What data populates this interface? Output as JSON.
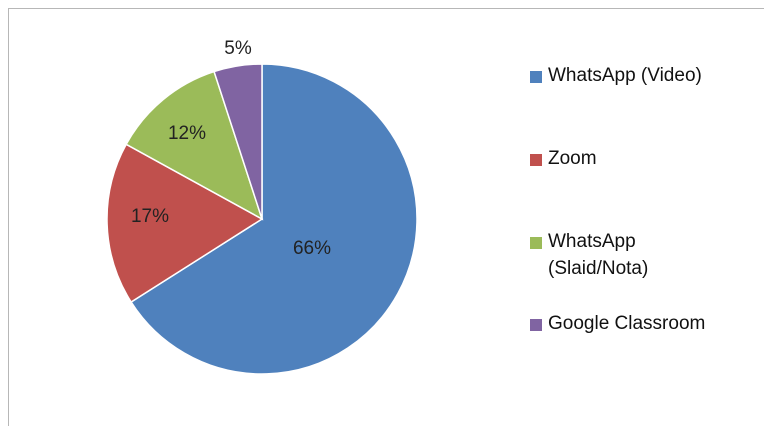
{
  "chart_data": {
    "type": "pie",
    "title": "",
    "slices": [
      {
        "name": "WhatsApp (Video)",
        "value": 66,
        "label": "66%",
        "color": "#4f81bd"
      },
      {
        "name": "Zoom",
        "value": 17,
        "label": "17%",
        "color": "#c0504d"
      },
      {
        "name": "WhatsApp (Slaid/Nota)",
        "value": 12,
        "label": "12%",
        "color": "#9bbb59"
      },
      {
        "name": "Google Classroom",
        "value": 5,
        "label": "5%",
        "color": "#8064a2"
      }
    ],
    "legend": {
      "placement": "right",
      "entries": [
        {
          "text": "WhatsApp (Video)",
          "color": "#4f81bd"
        },
        {
          "text": "Zoom",
          "color": "#c0504d"
        },
        {
          "text": "WhatsApp\n(Slaid/Nota)",
          "color": "#9bbb59"
        },
        {
          "text": "Google Classroom",
          "color": "#8064a2"
        }
      ]
    }
  }
}
